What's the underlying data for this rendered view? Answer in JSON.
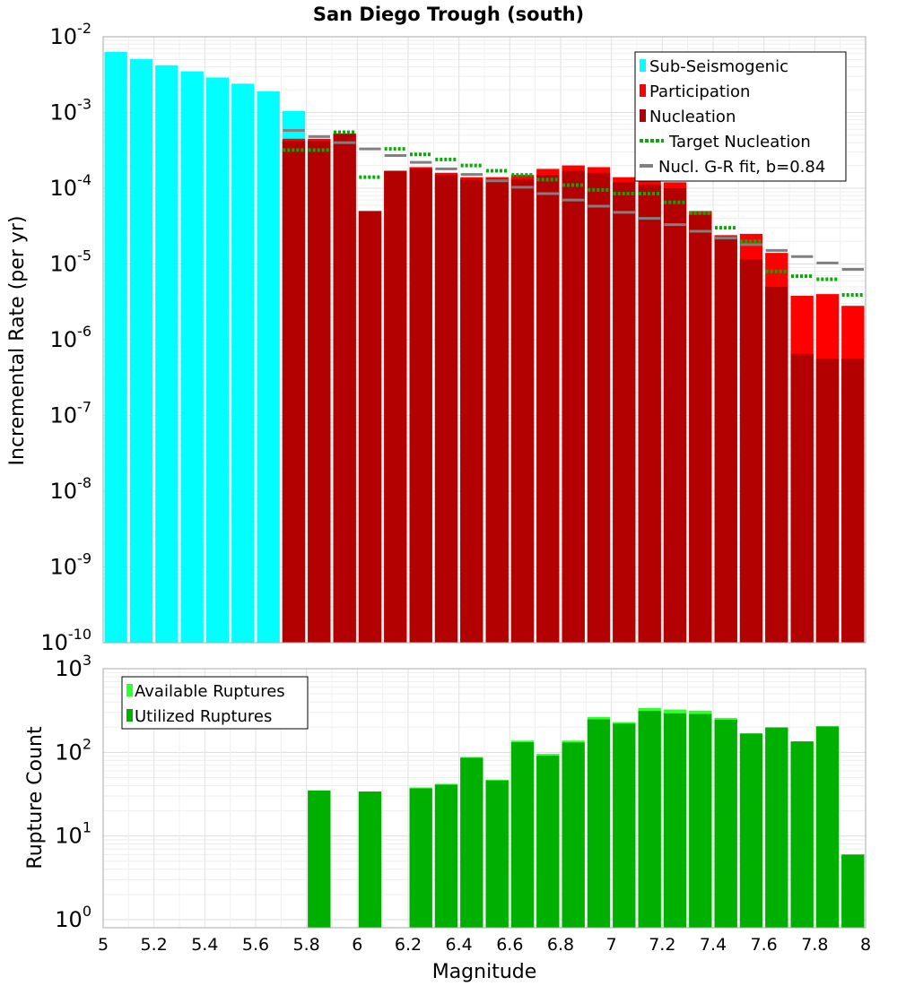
{
  "chart_data": [
    {
      "type": "bar",
      "title": "San Diego Trough (south)",
      "xlabel": "Magnitude",
      "ylabel": "Incremental Rate (per yr)",
      "yscale": "log",
      "xlim": [
        5,
        8
      ],
      "ylim": [
        1e-10,
        0.01
      ],
      "bin_width": 0.1,
      "x_ticks": [
        "5",
        "5.2",
        "5.4",
        "5.6",
        "5.8",
        "6",
        "6.2",
        "6.4",
        "6.6",
        "6.8",
        "7",
        "7.2",
        "7.4",
        "7.6",
        "7.8",
        "8"
      ],
      "y_ticks": [
        {
          "base": "10",
          "exp": "-10"
        },
        {
          "base": "10",
          "exp": "-9"
        },
        {
          "base": "10",
          "exp": "-8"
        },
        {
          "base": "10",
          "exp": "-7"
        },
        {
          "base": "10",
          "exp": "-6"
        },
        {
          "base": "10",
          "exp": "-5"
        },
        {
          "base": "10",
          "exp": "-4"
        },
        {
          "base": "10",
          "exp": "-3"
        },
        {
          "base": "10",
          "exp": "-2"
        }
      ],
      "legend_position": "top-right",
      "legend": [
        "Sub-Seismogenic",
        "Participation",
        "Nucleation",
        "Target Nucleation",
        "Nucl. G-R fit, b=0.84"
      ],
      "colors": {
        "sub": "#00ffff",
        "participation": "#ff0000",
        "nucleation": "#b30000",
        "target": "#00b000",
        "gr_fit": "#808080"
      },
      "series": [
        {
          "name": "Sub-Seismogenic",
          "x": [
            5.05,
            5.15,
            5.25,
            5.35,
            5.45,
            5.55,
            5.65,
            5.75
          ],
          "values": [
            0.0063,
            0.0051,
            0.0042,
            0.0035,
            0.0029,
            0.0024,
            0.0019,
            0.00105
          ]
        },
        {
          "name": "Participation",
          "x": [
            5.75,
            5.85,
            5.95,
            6.05,
            6.15,
            6.25,
            6.35,
            6.45,
            6.55,
            6.65,
            6.75,
            6.85,
            6.95,
            7.05,
            7.15,
            7.25,
            7.35,
            7.45,
            7.55,
            7.65,
            7.75,
            7.85,
            7.95
          ],
          "values": [
            0.00045,
            0.00045,
            0.00053,
            5e-05,
            0.00017,
            0.00019,
            0.00016,
            0.00014,
            0.00014,
            0.00015,
            0.00018,
            0.0002,
            0.00019,
            0.00014,
            0.00021,
            0.00012,
            5e-05,
            2.4e-05,
            2.5e-05,
            1.4e-05,
            3.8e-06,
            4e-06,
            2.8e-06
          ]
        },
        {
          "name": "Nucleation",
          "x": [
            5.75,
            5.85,
            5.95,
            6.05,
            6.15,
            6.25,
            6.35,
            6.45,
            6.55,
            6.65,
            6.75,
            6.85,
            6.95,
            7.05,
            7.15,
            7.25,
            7.35,
            7.45,
            7.55,
            7.65,
            7.75,
            7.85,
            7.95
          ],
          "values": [
            0.00042,
            0.00042,
            0.00052,
            5e-05,
            0.00017,
            0.00018,
            0.00015,
            0.00013,
            0.00013,
            0.00013,
            0.00015,
            0.00017,
            0.00016,
            0.00012,
            0.00011,
            0.0001,
            4.5e-05,
            2.2e-05,
            1.15e-05,
            5e-06,
            6.5e-07,
            5.6e-07,
            5.6e-07
          ]
        },
        {
          "name": "Target Nucleation",
          "x": [
            5.75,
            5.85,
            5.95,
            6.05,
            6.15,
            6.25,
            6.35,
            6.45,
            6.55,
            6.65,
            6.75,
            6.85,
            6.95,
            7.05,
            7.15,
            7.25,
            7.35,
            7.45,
            7.55,
            7.65,
            7.75,
            7.85,
            7.95
          ],
          "values": [
            0.00032,
            0.00032,
            0.00055,
            0.00014,
            0.00033,
            0.00028,
            0.00024,
            0.0002,
            0.00017,
            0.00015,
            0.00013,
            0.00011,
            9.5e-05,
            8.5e-05,
            8.5e-05,
            6.5e-05,
            4.7e-05,
            3e-05,
            2e-05,
            8e-06,
            6.9e-06,
            6.3e-06,
            3.9e-06
          ]
        },
        {
          "name": "Nucl. G-R fit, b=0.84",
          "x": [
            5.75,
            5.85,
            5.95,
            6.05,
            6.15,
            6.25,
            6.35,
            6.45,
            6.55,
            6.65,
            6.75,
            6.85,
            6.95,
            7.05,
            7.15,
            7.25,
            7.35,
            7.45,
            7.55,
            7.65,
            7.75,
            7.85,
            7.95
          ],
          "values": [
            0.00058,
            0.00048,
            0.0004,
            0.00033,
            0.00027,
            0.00022,
            0.00018,
            0.000152,
            0.000125,
            0.000103,
            8.5e-05,
            7e-05,
            5.8e-05,
            4.8e-05,
            4e-05,
            3.3e-05,
            2.7e-05,
            2.2e-05,
            1.8e-05,
            1.51e-05,
            1.25e-05,
            1.03e-05,
            8.5e-06
          ]
        }
      ]
    },
    {
      "type": "bar",
      "title": "",
      "xlabel": "Magnitude",
      "ylabel": "Rupture Count",
      "yscale": "log",
      "xlim": [
        5,
        8
      ],
      "ylim": [
        0.8,
        1000
      ],
      "y_ticks": [
        {
          "base": "10",
          "exp": "0"
        },
        {
          "base": "10",
          "exp": "1"
        },
        {
          "base": "10",
          "exp": "2"
        },
        {
          "base": "10",
          "exp": "3"
        }
      ],
      "legend_position": "top-left",
      "legend": [
        "Available Ruptures",
        "Utilized Ruptures"
      ],
      "colors": {
        "available": "#33ff33",
        "utilized": "#00b000"
      },
      "series": [
        {
          "name": "Available Ruptures",
          "x": [
            5.85,
            6.05,
            6.25,
            6.35,
            6.45,
            6.55,
            6.65,
            6.75,
            6.85,
            6.95,
            7.05,
            7.15,
            7.25,
            7.35,
            7.45,
            7.55,
            7.65,
            7.75,
            7.85,
            7.95
          ],
          "values": [
            35,
            34,
            38,
            42,
            88,
            47,
            138,
            96,
            138,
            265,
            230,
            340,
            325,
            315,
            258,
            168,
            200,
            135,
            205,
            6
          ]
        },
        {
          "name": "Utilized Ruptures",
          "x": [
            5.85,
            6.05,
            6.25,
            6.35,
            6.45,
            6.55,
            6.65,
            6.75,
            6.85,
            6.95,
            7.05,
            7.15,
            7.25,
            7.35,
            7.45,
            7.55,
            7.65,
            7.75,
            7.85,
            7.95
          ],
          "values": [
            35,
            34,
            37,
            41,
            86,
            46,
            132,
            91,
            131,
            248,
            220,
            312,
            292,
            287,
            245,
            168,
            197,
            135,
            204,
            6
          ]
        }
      ]
    }
  ]
}
